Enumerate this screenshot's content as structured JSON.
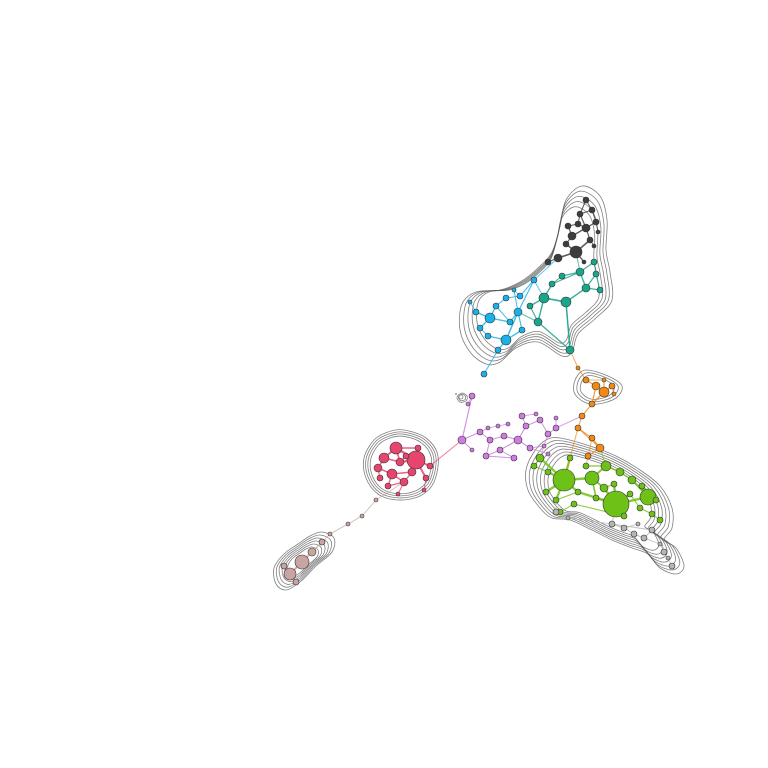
{
  "graph": {
    "background": "#ffffff",
    "contour_color": "#555555",
    "clusters": [
      {
        "id": "gray-dark",
        "color": "#3d3d3d"
      },
      {
        "id": "teal",
        "color": "#19a68a"
      },
      {
        "id": "blue",
        "color": "#1ab2e6"
      },
      {
        "id": "orange",
        "color": "#f08a14"
      },
      {
        "id": "green",
        "color": "#6ec117"
      },
      {
        "id": "light-gray",
        "color": "#b5b5b5"
      },
      {
        "id": "purple",
        "color": "#cf7be0"
      },
      {
        "id": "pink-red",
        "color": "#e8456e"
      },
      {
        "id": "rose-brown",
        "color": "#c9a4a0"
      }
    ]
  }
}
